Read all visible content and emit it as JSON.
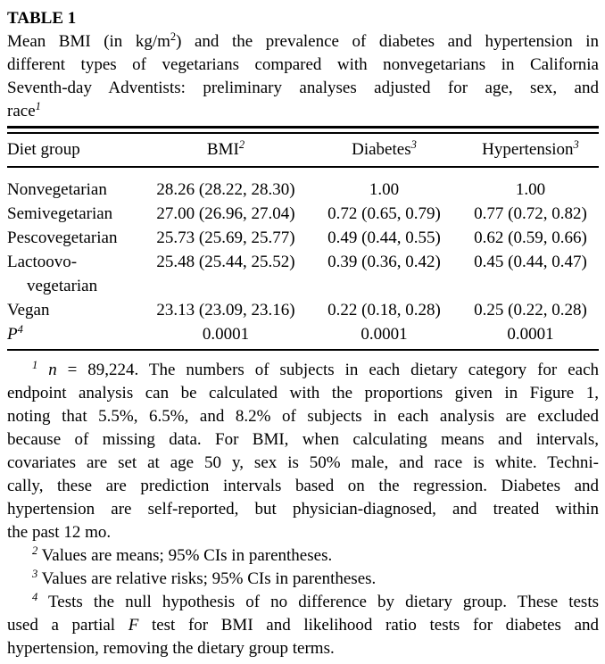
{
  "page": {
    "background": "#ffffff",
    "text_color": "#000000"
  },
  "table_label": "TABLE 1",
  "caption": {
    "lines": [
      {
        "pre": "Mean BMI (in kg/m",
        "sup": "2",
        "post": ") and the prevalence of diabetes and hypertension in"
      },
      {
        "pre": "different types of vegetarians compared with nonvegetarians in California"
      },
      {
        "pre": "Seventh-day Adventists: preliminary analyses adjusted for age, sex, and"
      },
      {
        "pre": "race",
        "sup_italic": "1"
      }
    ]
  },
  "table": {
    "columns": [
      {
        "label": "Diet group"
      },
      {
        "label": "BMI",
        "sup": "2"
      },
      {
        "label": "Diabetes",
        "sup": "3"
      },
      {
        "label": "Hypertension",
        "sup": "3"
      }
    ],
    "rows": [
      {
        "diet": "Nonvegetarian",
        "bmi": "28.26 (28.22, 28.30)",
        "diabetes": "1.00",
        "hypertension": "1.00"
      },
      {
        "diet": "Semivegetarian",
        "bmi": "27.00 (26.96, 27.04)",
        "diabetes": "0.72 (0.65, 0.79)",
        "hypertension": "0.77 (0.72, 0.82)"
      },
      {
        "diet": "Pescovegetarian",
        "bmi": "25.73 (25.69, 25.77)",
        "diabetes": "0.49 (0.44, 0.55)",
        "hypertension": "0.62 (0.59, 0.66)"
      },
      {
        "diet": "Lactoovo-vegetarian",
        "bmi": "25.48 (25.44, 25.52)",
        "diabetes": "0.39 (0.36, 0.42)",
        "hypertension": "0.45 (0.44, 0.47)"
      },
      {
        "diet": "Vegan",
        "bmi": "23.13 (23.09, 23.16)",
        "diabetes": "0.22 (0.18, 0.28)",
        "hypertension": "0.25 (0.22, 0.28)"
      },
      {
        "diet": "P",
        "diet_sup": "4",
        "bmi": "0.0001",
        "diabetes": "0.0001",
        "hypertension": "0.0001"
      }
    ]
  },
  "footnotes": [
    {
      "marker": "1",
      "lines": [
        {
          "var": " n",
          "text": " = 89,224. The numbers of subjects in each dietary category for each"
        },
        {
          "text": "endpoint analysis can be calculated with the proportions given in Figure 1,"
        },
        {
          "text": "noting that 5.5%, 6.5%, and 8.2% of subjects in each analysis are excluded"
        },
        {
          "text": "because of missing data. For BMI, when calculating means and intervals,"
        },
        {
          "text": "covariates are set at age 50 y, sex is 50% male, and race is white. Techni-"
        },
        {
          "text": "cally, these are prediction intervals based on the regression. Diabetes and"
        },
        {
          "text": "hypertension are self-reported, but physician-diagnosed, and treated within"
        },
        {
          "text": "the past 12 mo."
        }
      ]
    },
    {
      "marker": "2",
      "lines": [
        {
          "text": " Values are means; 95% CIs in parentheses."
        }
      ]
    },
    {
      "marker": "3",
      "lines": [
        {
          "text": " Values are relative risks; 95% CIs in parentheses."
        }
      ]
    },
    {
      "marker": "4",
      "lines": [
        {
          "text": " Tests the null hypothesis of no difference by dietary group. These tests"
        },
        {
          "pre": "used a partial ",
          "var": "F",
          "text": " test for BMI and likelihood ratio tests for diabetes and"
        },
        {
          "text": "hypertension, removing the dietary group terms."
        }
      ]
    }
  ]
}
